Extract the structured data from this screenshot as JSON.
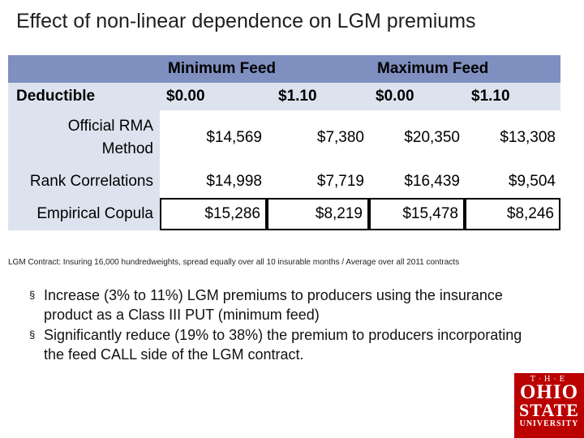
{
  "title": "Effect of non-linear dependence on LGM premiums",
  "table": {
    "group_headers": [
      "Minimum Feed",
      "Maximum Feed"
    ],
    "row_header": "Deductible",
    "deductibles": [
      "$0.00",
      "$1.10",
      "$0.00",
      "$1.10"
    ],
    "rows": [
      {
        "label_lines": [
          "Official RMA",
          "Method"
        ],
        "values": [
          "$14,569",
          "$7,380",
          "$20,350",
          "$13,308"
        ]
      },
      {
        "label": "Rank Correlations",
        "values": [
          "$14,998",
          "$7,719",
          "$16,439",
          "$9,504"
        ]
      },
      {
        "label": "Empirical Copula",
        "values": [
          "$15,286",
          "$8,219",
          "$15,478",
          "$8,246"
        ]
      }
    ],
    "colors": {
      "header_bg": "#7f8fbf",
      "label_bg": "#dde3ee"
    }
  },
  "note": "LGM Contract: Insuring 16,000 hundredweights, spread equally over all 10 insurable months / Average over all 2011 contracts",
  "bullets": [
    "Increase (3% to 11%) LGM premiums to producers using the insurance product as a Class III PUT (minimum feed)",
    "Significantly reduce (19% to 38%) the premium to producers incorporating the feed CALL side of the LGM contract."
  ],
  "bullet_marker": "§",
  "logo": {
    "the": "T·H·E",
    "line1": "OHIO",
    "line2": "STATE",
    "line3": "UNIVERSITY",
    "color": "#bb0000"
  }
}
